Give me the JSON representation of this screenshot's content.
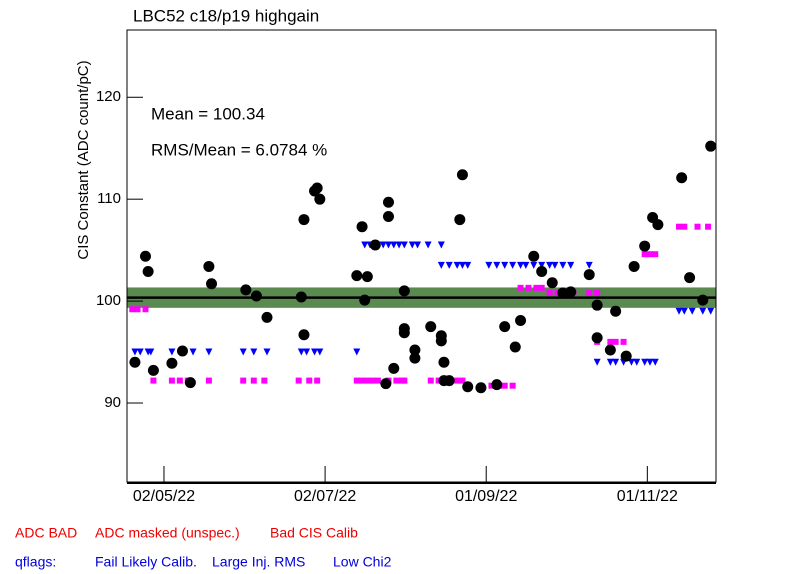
{
  "chart_data": {
    "type": "scatter",
    "title": "LBC52 c18/p19 highgain",
    "y_label": "CIS Constant (ADC count/pC)",
    "annotations": [
      "Mean = 100.34",
      "RMS/Mean = 6.0784 %"
    ],
    "mean": 100.34,
    "band": [
      99.34,
      101.34
    ],
    "band_color": "#5a8a50",
    "xlim": [
      "2022-04-18",
      "2022-11-27"
    ],
    "xticks": [
      {
        "value": "2022-05-02",
        "label": "02/05/22"
      },
      {
        "value": "2022-07-02",
        "label": "02/07/22"
      },
      {
        "value": "2022-09-01",
        "label": "01/09/22"
      },
      {
        "value": "2022-11-01",
        "label": "01/11/22"
      }
    ],
    "ylim": [
      82.25,
      126.6
    ],
    "yticks": [
      90,
      100,
      110,
      120
    ],
    "series": [
      {
        "color": "#000000",
        "marker": "circle",
        "x": [
          "2022-04-21",
          "2022-04-25",
          "2022-04-26",
          "2022-04-28",
          "2022-05-05",
          "2022-05-09",
          "2022-05-12",
          "2022-05-19",
          "2022-05-20",
          "2022-06-02",
          "2022-06-06",
          "2022-06-10",
          "2022-06-23",
          "2022-06-24",
          "2022-06-24",
          "2022-06-28",
          "2022-06-29",
          "2022-06-30",
          "2022-07-14",
          "2022-07-16",
          "2022-07-17",
          "2022-07-18",
          "2022-07-21",
          "2022-07-25",
          "2022-07-26",
          "2022-07-26",
          "2022-07-28",
          "2022-08-01",
          "2022-08-01",
          "2022-08-01",
          "2022-08-05",
          "2022-08-05",
          "2022-08-11",
          "2022-08-15",
          "2022-08-15",
          "2022-08-16",
          "2022-08-16",
          "2022-08-18",
          "2022-08-22",
          "2022-08-23",
          "2022-08-25",
          "2022-08-30",
          "2022-09-05",
          "2022-09-08",
          "2022-09-12",
          "2022-09-14",
          "2022-09-19",
          "2022-09-22",
          "2022-09-26",
          "2022-09-30",
          "2022-10-03",
          "2022-10-10",
          "2022-10-13",
          "2022-10-13",
          "2022-10-18",
          "2022-10-20",
          "2022-10-24",
          "2022-10-27",
          "2022-10-31",
          "2022-11-03",
          "2022-11-05",
          "2022-11-14",
          "2022-11-17",
          "2022-11-22",
          "2022-11-25"
        ],
        "values": [
          94.0,
          104.4,
          102.9,
          93.2,
          93.9,
          95.1,
          92.0,
          103.4,
          101.7,
          101.1,
          100.5,
          98.4,
          100.4,
          108.0,
          96.7,
          110.8,
          111.1,
          110.0,
          102.5,
          107.3,
          100.1,
          102.4,
          105.5,
          91.9,
          109.7,
          108.3,
          93.4,
          101.0,
          97.3,
          96.9,
          95.2,
          94.4,
          97.5,
          96.6,
          96.1,
          94.0,
          92.2,
          92.2,
          108.0,
          112.4,
          91.6,
          91.5,
          91.8,
          97.5,
          95.5,
          98.1,
          104.4,
          102.9,
          101.8,
          100.8,
          100.9,
          102.6,
          99.6,
          96.4,
          95.2,
          99.0,
          94.6,
          103.4,
          105.4,
          108.2,
          107.5,
          112.1,
          102.3,
          100.1,
          115.2
        ]
      },
      {
        "color": "#0000ff",
        "marker": "triangle-down",
        "x": [
          "2022-04-21",
          "2022-04-23",
          "2022-04-26",
          "2022-04-27",
          "2022-05-05",
          "2022-05-09",
          "2022-05-13",
          "2022-05-19",
          "2022-06-01",
          "2022-06-05",
          "2022-06-10",
          "2022-06-23",
          "2022-06-25",
          "2022-06-28",
          "2022-06-30",
          "2022-07-14",
          "2022-07-17",
          "2022-07-19",
          "2022-07-21",
          "2022-07-24",
          "2022-07-26",
          "2022-07-28",
          "2022-07-30",
          "2022-08-01",
          "2022-08-04",
          "2022-08-06",
          "2022-08-10",
          "2022-08-15",
          "2022-08-15",
          "2022-08-18",
          "2022-08-21",
          "2022-08-23",
          "2022-08-25",
          "2022-09-02",
          "2022-09-05",
          "2022-09-08",
          "2022-09-11",
          "2022-09-14",
          "2022-09-16",
          "2022-09-19",
          "2022-09-22",
          "2022-09-25",
          "2022-09-27",
          "2022-09-30",
          "2022-10-03",
          "2022-10-10",
          "2022-10-13",
          "2022-10-18",
          "2022-10-20",
          "2022-10-23",
          "2022-10-26",
          "2022-10-28",
          "2022-10-31",
          "2022-11-02",
          "2022-11-04",
          "2022-11-13",
          "2022-11-15",
          "2022-11-18",
          "2022-11-22",
          "2022-11-25"
        ],
        "values": [
          95,
          95,
          95,
          95,
          95,
          95,
          95,
          95,
          95,
          95,
          95,
          95,
          95,
          95,
          95,
          95,
          105.5,
          105.5,
          105.5,
          105.5,
          105.5,
          105.5,
          105.5,
          105.5,
          105.5,
          105.5,
          105.5,
          105.5,
          103.5,
          103.5,
          103.5,
          103.5,
          103.5,
          103.5,
          103.5,
          103.5,
          103.5,
          103.5,
          103.5,
          103.5,
          103.5,
          103.5,
          103.5,
          103.5,
          103.5,
          103.5,
          94,
          94,
          94,
          94,
          94,
          94,
          94,
          94,
          94,
          99,
          99,
          99,
          99,
          99
        ]
      },
      {
        "color": "#ff00ff",
        "marker": "square",
        "x": [
          "2022-04-20",
          "2022-04-22",
          "2022-04-25",
          "2022-04-28",
          "2022-05-05",
          "2022-05-08",
          "2022-05-11",
          "2022-05-19",
          "2022-06-01",
          "2022-06-05",
          "2022-06-09",
          "2022-06-22",
          "2022-06-26",
          "2022-06-29",
          "2022-07-14",
          "2022-07-16",
          "2022-07-18",
          "2022-07-20",
          "2022-07-22",
          "2022-07-26",
          "2022-07-29",
          "2022-07-31",
          "2022-08-01",
          "2022-08-11",
          "2022-08-14",
          "2022-08-16",
          "2022-08-18",
          "2022-08-21",
          "2022-08-23",
          "2022-09-03",
          "2022-09-06",
          "2022-09-08",
          "2022-09-11",
          "2022-09-14",
          "2022-09-17",
          "2022-09-20",
          "2022-09-22",
          "2022-09-25",
          "2022-09-28",
          "2022-10-01",
          "2022-10-04",
          "2022-10-10",
          "2022-10-13",
          "2022-10-13",
          "2022-10-18",
          "2022-10-20",
          "2022-10-23",
          "2022-10-31",
          "2022-11-02",
          "2022-11-04",
          "2022-11-13",
          "2022-11-15",
          "2022-11-20",
          "2022-11-24"
        ],
        "values": [
          99.2,
          99.2,
          99.2,
          92.2,
          92.2,
          92.2,
          92.2,
          92.2,
          92.2,
          92.2,
          92.2,
          92.2,
          92.2,
          92.2,
          92.2,
          92.2,
          92.2,
          92.2,
          92.2,
          92.2,
          92.2,
          92.2,
          92.2,
          92.2,
          92.2,
          92.2,
          92.2,
          92.2,
          92.2,
          91.7,
          91.7,
          91.7,
          91.7,
          101.3,
          101.3,
          101.3,
          101.3,
          100.8,
          100.8,
          100.8,
          100.8,
          100.8,
          100.8,
          96,
          96,
          96,
          96,
          104.6,
          104.6,
          104.6,
          107.3,
          107.3,
          107.3,
          107.3
        ]
      }
    ],
    "legend_rows": [
      {
        "color": "#ee0000",
        "items": [
          "ADC BAD",
          "ADC masked (unspec.)",
          "Bad CIS Calib"
        ]
      },
      {
        "color": "#0000dd",
        "items": [
          "qflags:",
          "Fail Likely Calib.",
          "Large Inj. RMS",
          "Low Chi2"
        ]
      }
    ]
  }
}
